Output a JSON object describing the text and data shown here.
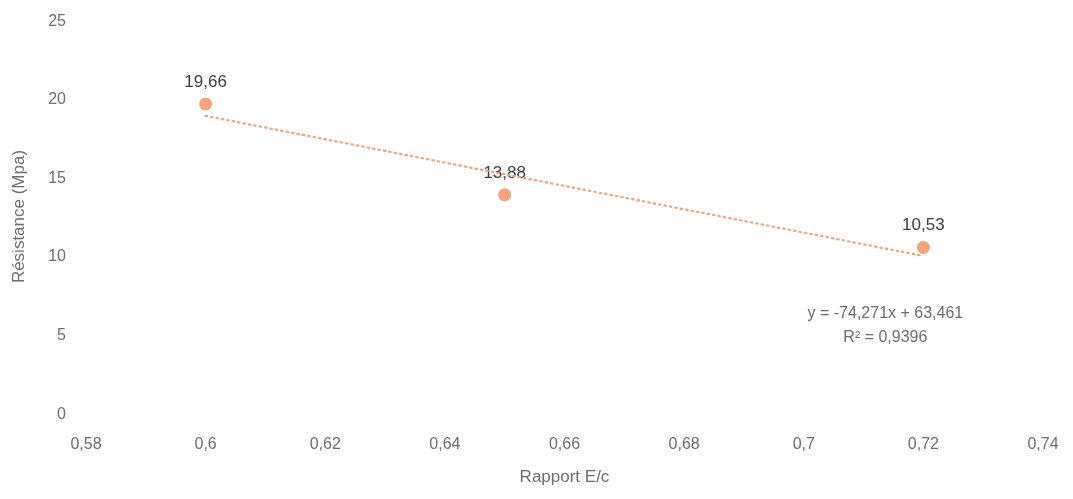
{
  "chart_data": {
    "type": "scatter",
    "xlabel": "Rapport E/c",
    "ylabel": "Résistance (Mpa)",
    "xlim": [
      0.58,
      0.74
    ],
    "xticks": [
      {
        "value": 0.58,
        "label": "0,58"
      },
      {
        "value": 0.6,
        "label": "0,6"
      },
      {
        "value": 0.62,
        "label": "0,62"
      },
      {
        "value": 0.64,
        "label": "0,64"
      },
      {
        "value": 0.66,
        "label": "0,66"
      },
      {
        "value": 0.68,
        "label": "0,68"
      },
      {
        "value": 0.7,
        "label": "0,7"
      },
      {
        "value": 0.72,
        "label": "0,72"
      },
      {
        "value": 0.74,
        "label": "0,74"
      }
    ],
    "ylim": [
      0,
      25
    ],
    "yticks": [
      0,
      5,
      10,
      15,
      20,
      25
    ],
    "series": [
      {
        "color": "#f4a47c",
        "x": [
          0.6,
          0.65,
          0.72
        ],
        "values": [
          19.66,
          13.88,
          10.53
        ],
        "value_labels": [
          "19,66",
          "13,88",
          "10,53"
        ],
        "marker": "circle"
      },
      {
        "type": "line",
        "color": "#f4a47c",
        "x": [
          0.6,
          0.72
        ],
        "values": [
          18.9,
          9.99
        ],
        "line_style": "dotted",
        "marker": "none"
      }
    ],
    "annotations": [
      "y = -74,271x + 63,461",
      "R² = 0,9396"
    ]
  }
}
